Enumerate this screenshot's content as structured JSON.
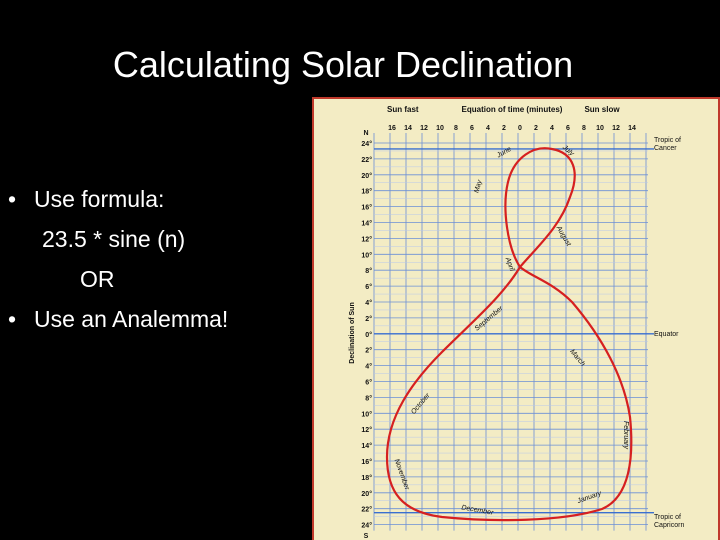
{
  "slide": {
    "title": "Calculating Solar Declination",
    "bullets": [
      {
        "text": "Use formula:",
        "sub": [
          "23.5 * sine (n)",
          "OR"
        ]
      },
      {
        "text": "Use an Analemma!",
        "sub": []
      }
    ]
  },
  "figure": {
    "header": [
      "Sun fast",
      "Equation of time (minutes)",
      "Sun slow"
    ],
    "x_ticks": [
      "16",
      "14",
      "12",
      "10",
      "8",
      "6",
      "4",
      "2",
      "0",
      "2",
      "4",
      "6",
      "8",
      "10",
      "12",
      "14"
    ],
    "y_ticks": [
      "24°",
      "22°",
      "20°",
      "18°",
      "16°",
      "14°",
      "12°",
      "10°",
      "8°",
      "6°",
      "4°",
      "2°",
      "0°",
      "2°",
      "4°",
      "6°",
      "8°",
      "10°",
      "12°",
      "14°",
      "16°",
      "18°",
      "20°",
      "22°",
      "24°"
    ],
    "north": "N",
    "south": "S",
    "y_label": "Declination of Sun",
    "tropic_cancer": "Tropic of Cancer",
    "equator": "Equator",
    "tropic_capricorn": "Tropic of Capricorn",
    "months": [
      "June",
      "July",
      "May",
      "August",
      "April",
      "September",
      "March",
      "October",
      "February",
      "November",
      "January",
      "December"
    ]
  }
}
